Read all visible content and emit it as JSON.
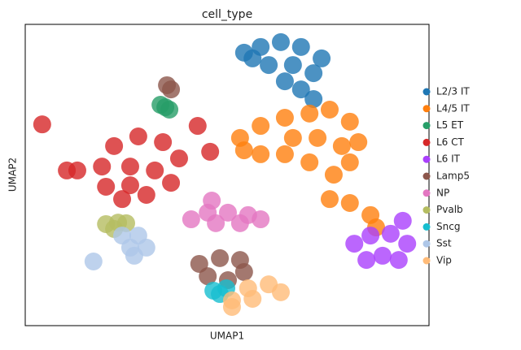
{
  "chart_data": {
    "type": "scatter",
    "title": "cell_type",
    "x_label": "UMAP1",
    "y_label": "UMAP2",
    "xlim": [
      0,
      100
    ],
    "ylim": [
      0,
      100
    ],
    "legend": "right",
    "series": [
      {
        "name": "L2/3 IT",
        "color": "#1f77b4",
        "x": [
          54.2,
          58.3,
          63.3,
          68.3,
          73.4,
          60.3,
          66.3,
          71.4,
          64.3,
          68.3,
          71.4,
          56.3
        ],
        "y": [
          90.6,
          92.5,
          94.1,
          92.5,
          88.7,
          86.5,
          86.5,
          83.8,
          81.1,
          78.4,
          75.2,
          88.7
        ]
      },
      {
        "name": "L4/5 IT",
        "color": "#ff7f0e",
        "x": [
          53.2,
          58.3,
          64.3,
          70.4,
          75.4,
          80.4,
          82.5,
          80.4,
          76.4,
          70.4,
          64.3,
          58.3,
          54.2,
          72.4,
          66.3,
          78.4,
          75.4,
          80.4,
          85.5,
          86.9
        ],
        "y": [
          62.3,
          66.3,
          69.0,
          70.4,
          71.7,
          67.7,
          60.9,
          54.2,
          50.1,
          54.2,
          56.9,
          56.9,
          58.2,
          62.3,
          62.3,
          59.6,
          42.0,
          40.7,
          36.7,
          32.6
        ]
      },
      {
        "name": "L5 ET",
        "color": "#279e68",
        "x": [
          33.5,
          34.7,
          35.7
        ],
        "y": [
          73.3,
          72.5,
          71.7
        ]
      },
      {
        "name": "L6 CT",
        "color": "#d62728",
        "x": [
          22.0,
          28.0,
          34.1,
          38.1,
          36.1,
          30.0,
          24.0,
          20.0,
          19.0,
          26.0,
          32.1,
          12.9,
          10.3,
          26.0,
          4.2,
          42.7,
          45.8
        ],
        "y": [
          59.6,
          62.8,
          60.9,
          55.5,
          47.4,
          43.4,
          42.0,
          46.1,
          52.8,
          52.8,
          51.5,
          51.5,
          51.5,
          46.6,
          66.8,
          66.3,
          57.7
        ]
      },
      {
        "name": "L6 IT",
        "color": "#aa40fc",
        "x": [
          81.5,
          85.5,
          90.5,
          94.6,
          88.5,
          84.5,
          92.5,
          93.5
        ],
        "y": [
          27.2,
          29.9,
          30.5,
          27.2,
          23.2,
          21.8,
          21.8,
          34.8
        ]
      },
      {
        "name": "Lamp5",
        "color": "#8c564b",
        "x": [
          43.1,
          48.2,
          53.2,
          54.2,
          50.2,
          45.2,
          35.1,
          36.1
        ],
        "y": [
          20.5,
          22.4,
          21.8,
          17.8,
          15.1,
          16.4,
          79.8,
          78.4
        ]
      },
      {
        "name": "NP",
        "color": "#e377c2",
        "x": [
          41.1,
          45.2,
          50.2,
          55.2,
          58.3,
          47.2,
          53.2,
          46.2
        ],
        "y": [
          35.3,
          37.5,
          37.5,
          36.7,
          35.3,
          34.0,
          34.0,
          41.5
        ]
      },
      {
        "name": "Pvalb",
        "color": "#b5bd61",
        "x": [
          20.0,
          23.0,
          22.0,
          25.0
        ],
        "y": [
          33.7,
          34.2,
          32.1,
          34.0
        ]
      },
      {
        "name": "Sncg",
        "color": "#17becf",
        "x": [
          46.6,
          48.2,
          49.8
        ],
        "y": [
          11.6,
          10.5,
          12.4
        ]
      },
      {
        "name": "Sst",
        "color": "#aec7e8",
        "x": [
          24.0,
          28.0,
          26.0,
          30.0,
          27.0,
          16.9
        ],
        "y": [
          29.9,
          29.9,
          25.9,
          25.9,
          23.2,
          21.3
        ]
      },
      {
        "name": "Vip",
        "color": "#ffbb78",
        "x": [
          51.2,
          55.2,
          60.3,
          63.3,
          56.3,
          51.2
        ],
        "y": [
          8.4,
          12.4,
          13.7,
          11.1,
          8.9,
          6.2
        ]
      }
    ]
  }
}
